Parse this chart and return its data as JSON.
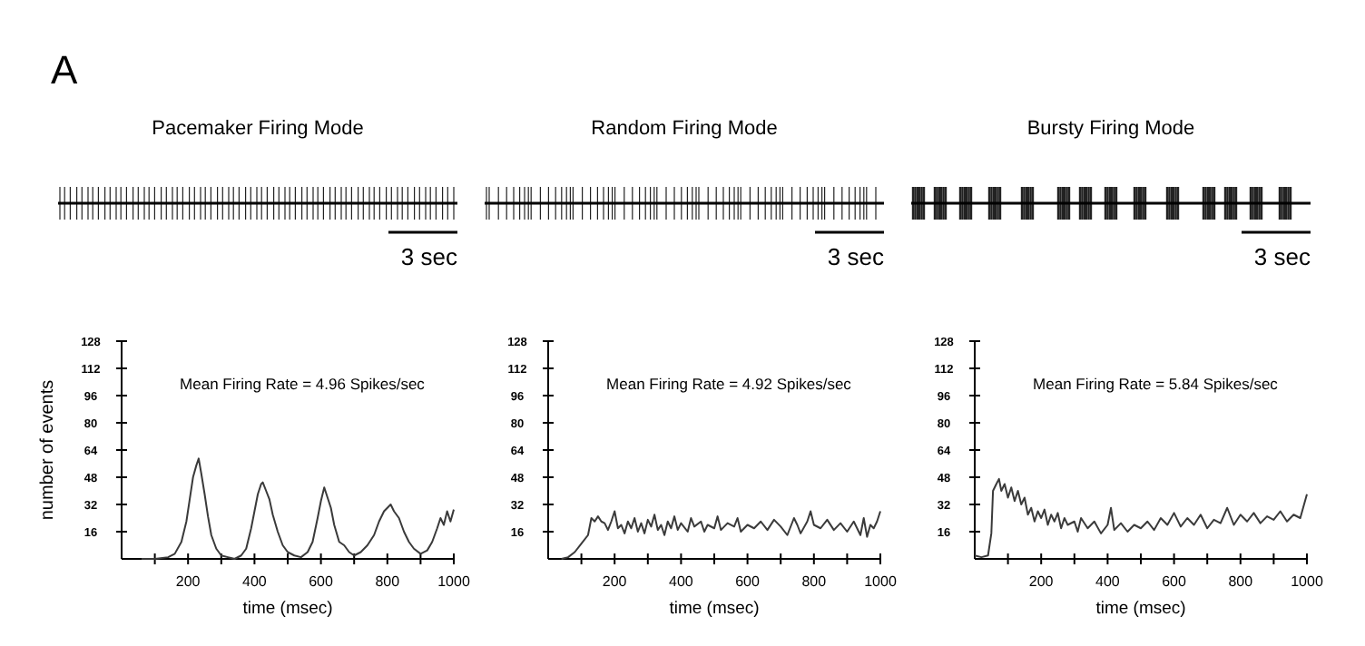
{
  "chart_data": [
    {
      "type": "line",
      "title": "Pacemaker Firing Mode",
      "xlabel": "time (msec)",
      "ylabel": "number of events",
      "annotations": [
        "A",
        "3 sec",
        "Mean Firing Rate = 4.96 Spikes/sec"
      ],
      "xlim": [
        0,
        1000
      ],
      "ylim": [
        0,
        128
      ],
      "xticks": [
        {
          "value": 100,
          "label": null
        },
        200,
        {
          "value": 300,
          "label": null
        },
        400,
        {
          "value": 500,
          "label": null
        },
        600,
        {
          "value": 700,
          "label": null
        },
        800,
        {
          "value": 900,
          "label": null
        },
        1000
      ],
      "yticks": [
        16,
        32,
        48,
        64,
        80,
        96,
        112,
        128
      ],
      "series": [
        {
          "color": "#3a3a3a",
          "x": [
            60,
            100,
            140,
            160,
            180,
            195,
            205,
            215,
            225,
            232,
            240,
            250,
            260,
            270,
            285,
            300,
            320,
            340,
            360,
            375,
            390,
            400,
            410,
            420,
            425,
            435,
            445,
            455,
            470,
            485,
            500,
            520,
            540,
            560,
            575,
            590,
            600,
            610,
            620,
            630,
            640,
            655,
            670,
            685,
            700,
            720,
            740,
            760,
            775,
            790,
            800,
            810,
            820,
            835,
            850,
            865,
            880,
            900,
            920,
            935,
            950,
            960,
            970,
            980,
            990,
            1000
          ],
          "values": [
            0,
            0,
            1,
            3,
            10,
            22,
            35,
            48,
            55,
            59,
            50,
            38,
            25,
            14,
            6,
            2,
            1,
            0,
            2,
            6,
            18,
            28,
            38,
            44,
            45,
            40,
            35,
            26,
            16,
            8,
            4,
            2,
            1,
            4,
            10,
            24,
            34,
            42,
            36,
            30,
            20,
            10,
            8,
            4,
            2,
            4,
            8,
            14,
            22,
            28,
            30,
            32,
            28,
            24,
            16,
            10,
            6,
            3,
            5,
            10,
            18,
            24,
            20,
            28,
            22,
            29
          ]
        }
      ]
    },
    {
      "type": "line",
      "title": "Random Firing Mode",
      "xlabel": "time (msec)",
      "annotations": [
        "3 sec",
        "Mean Firing Rate = 4.92 Spikes/sec"
      ],
      "xlim": [
        0,
        1000
      ],
      "ylim": [
        0,
        128
      ],
      "xticks": [
        {
          "value": 100,
          "label": null
        },
        200,
        {
          "value": 300,
          "label": null
        },
        400,
        {
          "value": 500,
          "label": null
        },
        600,
        {
          "value": 700,
          "label": null
        },
        800,
        {
          "value": 900,
          "label": null
        },
        1000
      ],
      "yticks": [
        16,
        32,
        48,
        64,
        80,
        96,
        112,
        128
      ],
      "series": [
        {
          "color": "#3a3a3a",
          "x": [
            40,
            60,
            80,
            100,
            120,
            130,
            140,
            150,
            160,
            170,
            180,
            190,
            200,
            210,
            220,
            230,
            240,
            250,
            260,
            270,
            280,
            290,
            300,
            310,
            320,
            330,
            340,
            350,
            360,
            370,
            380,
            390,
            400,
            420,
            430,
            440,
            460,
            470,
            480,
            500,
            510,
            520,
            540,
            560,
            570,
            580,
            600,
            620,
            640,
            660,
            680,
            700,
            720,
            740,
            750,
            760,
            780,
            790,
            800,
            820,
            840,
            860,
            880,
            900,
            920,
            940,
            950,
            960,
            970,
            980,
            990,
            1000
          ],
          "values": [
            0,
            1,
            4,
            9,
            14,
            24,
            22,
            25,
            22,
            21,
            17,
            22,
            28,
            18,
            20,
            15,
            22,
            18,
            24,
            16,
            21,
            15,
            23,
            19,
            26,
            17,
            20,
            14,
            22,
            18,
            25,
            17,
            21,
            16,
            24,
            19,
            22,
            16,
            20,
            18,
            25,
            17,
            21,
            19,
            24,
            16,
            20,
            18,
            22,
            17,
            23,
            19,
            14,
            24,
            20,
            15,
            22,
            28,
            20,
            18,
            23,
            17,
            21,
            16,
            22,
            14,
            24,
            13,
            20,
            18,
            22,
            28
          ]
        }
      ]
    },
    {
      "type": "line",
      "title": "Bursty Firing Mode",
      "xlabel": "time (msec)",
      "annotations": [
        "3 sec",
        "Mean Firing Rate = 5.84 Spikes/sec"
      ],
      "xlim": [
        0,
        1000
      ],
      "ylim": [
        0,
        128
      ],
      "xticks": [
        {
          "value": 100,
          "label": null
        },
        200,
        {
          "value": 300,
          "label": null
        },
        400,
        {
          "value": 500,
          "label": null
        },
        600,
        {
          "value": 700,
          "label": null
        },
        800,
        {
          "value": 900,
          "label": null
        },
        1000
      ],
      "yticks": [
        16,
        32,
        48,
        64,
        80,
        96,
        112,
        128
      ],
      "series": [
        {
          "color": "#3a3a3a",
          "x": [
            0,
            20,
            40,
            50,
            55,
            65,
            73,
            80,
            90,
            100,
            110,
            120,
            130,
            140,
            150,
            160,
            170,
            180,
            190,
            200,
            210,
            220,
            230,
            240,
            250,
            260,
            270,
            280,
            300,
            310,
            320,
            340,
            360,
            380,
            400,
            410,
            420,
            440,
            460,
            480,
            500,
            520,
            540,
            560,
            580,
            600,
            620,
            640,
            660,
            680,
            700,
            720,
            740,
            760,
            780,
            800,
            820,
            840,
            860,
            880,
            900,
            920,
            940,
            960,
            980,
            1000
          ],
          "values": [
            2,
            1,
            2,
            15,
            40,
            44,
            47,
            40,
            44,
            36,
            42,
            34,
            40,
            32,
            36,
            26,
            30,
            22,
            28,
            24,
            29,
            20,
            26,
            22,
            27,
            18,
            24,
            20,
            22,
            16,
            24,
            18,
            22,
            15,
            20,
            30,
            17,
            21,
            16,
            20,
            18,
            22,
            17,
            24,
            20,
            27,
            19,
            24,
            20,
            26,
            18,
            23,
            21,
            30,
            20,
            26,
            22,
            27,
            21,
            25,
            23,
            28,
            22,
            26,
            24,
            38
          ]
        }
      ]
    }
  ]
}
